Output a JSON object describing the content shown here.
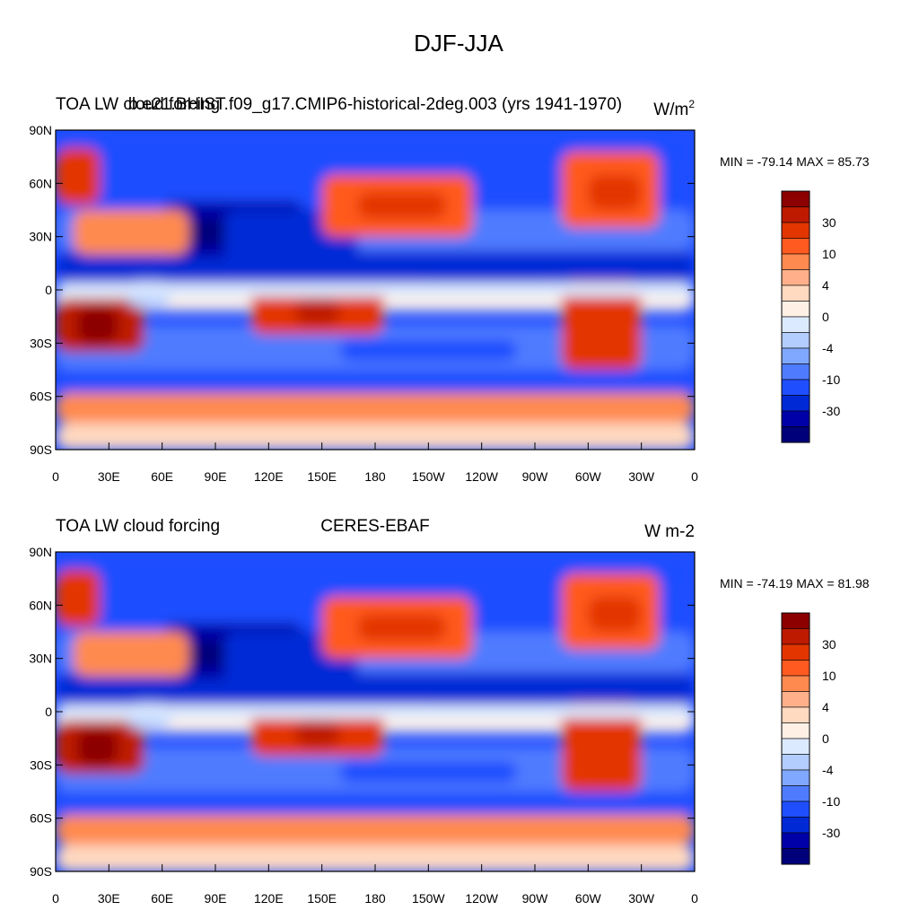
{
  "figure": {
    "title": "DJF-JJA"
  },
  "chart_data": [
    {
      "type": "heatmap",
      "variable": "TOA LW cloud forcing",
      "title_left": "TOA LW cloud forcing",
      "title_center": "b.e21.BHIST.f09_g17.CMIP6-historical-2deg.003 (yrs 1941-1970)",
      "units": "W/m",
      "units_sup": "2",
      "stats": "MIN = -79.14 MAX =  85.73",
      "min": -79.14,
      "max": 85.73,
      "xticks": [
        "0",
        "30E",
        "60E",
        "90E",
        "120E",
        "150E",
        "180",
        "150W",
        "120W",
        "90W",
        "60W",
        "30W",
        "0"
      ],
      "yticks": [
        "90N",
        "60N",
        "30N",
        "0",
        "30S",
        "60S",
        "90S"
      ],
      "colorbar_levels": [
        "30",
        "10",
        "4",
        "0",
        "-4",
        "-10",
        "-30"
      ],
      "colorbar_colors": [
        "#8c0000",
        "#be1a00",
        "#e33500",
        "#ff5a1f",
        "#ff8a50",
        "#ffb08a",
        "#ffd9c0",
        "#fff0e6",
        "#dbeaff",
        "#b3cdff",
        "#80a8ff",
        "#4f7cff",
        "#1f4eff",
        "#0029d6",
        "#0000a8",
        "#00007a"
      ]
    },
    {
      "type": "heatmap",
      "variable": "TOA LW cloud forcing",
      "title_left": "TOA LW cloud forcing",
      "title_center": "CERES-EBAF",
      "units": "W m-2",
      "units_sup": "",
      "stats": "MIN = -74.19 MAX =  81.98",
      "min": -74.19,
      "max": 81.98,
      "xticks": [
        "0",
        "30E",
        "60E",
        "90E",
        "120E",
        "150E",
        "180",
        "150W",
        "120W",
        "90W",
        "60W",
        "30W",
        "0"
      ],
      "yticks": [
        "90N",
        "60N",
        "30N",
        "0",
        "30S",
        "60S",
        "90S"
      ],
      "colorbar_levels": [
        "30",
        "10",
        "4",
        "0",
        "-4",
        "-10",
        "-30"
      ],
      "colorbar_colors": [
        "#8c0000",
        "#be1a00",
        "#e33500",
        "#ff5a1f",
        "#ff8a50",
        "#ffb08a",
        "#ffd9c0",
        "#fff0e6",
        "#dbeaff",
        "#b3cdff",
        "#80a8ff",
        "#4f7cff",
        "#1f4eff",
        "#0029d6",
        "#0000a8",
        "#00007a"
      ]
    }
  ]
}
